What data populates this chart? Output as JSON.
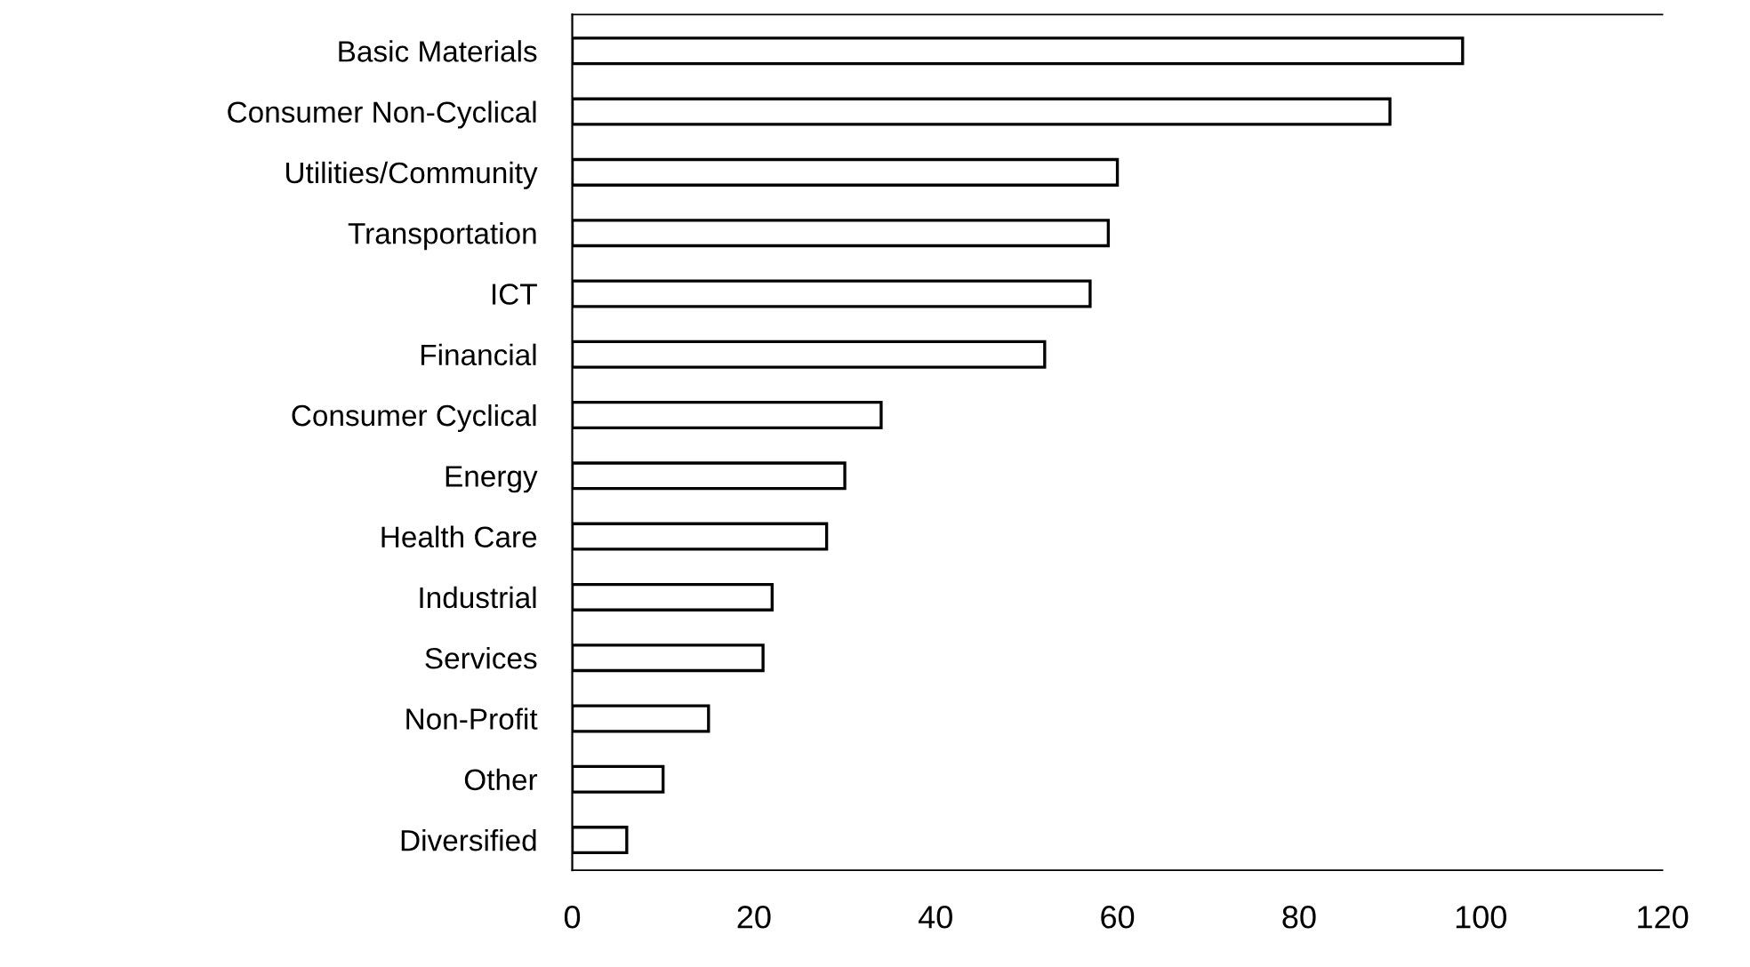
{
  "chart_data": {
    "type": "bar",
    "orientation": "horizontal",
    "categories": [
      "Basic Materials",
      "Consumer Non-Cyclical",
      "Utilities/Community",
      "Transportation",
      "ICT",
      "Financial",
      "Consumer Cyclical",
      "Energy",
      "Health Care",
      "Industrial",
      "Services",
      "Non-Profit",
      "Other",
      "Diversified"
    ],
    "values": [
      98,
      90,
      60,
      59,
      57,
      52,
      34,
      30,
      28,
      22,
      21,
      15,
      10,
      6
    ],
    "color": "#ffffff",
    "xlim": [
      0,
      120
    ],
    "xticks": [
      0,
      20,
      40,
      60,
      80,
      100,
      120
    ],
    "grid": false,
    "legend": false
  }
}
